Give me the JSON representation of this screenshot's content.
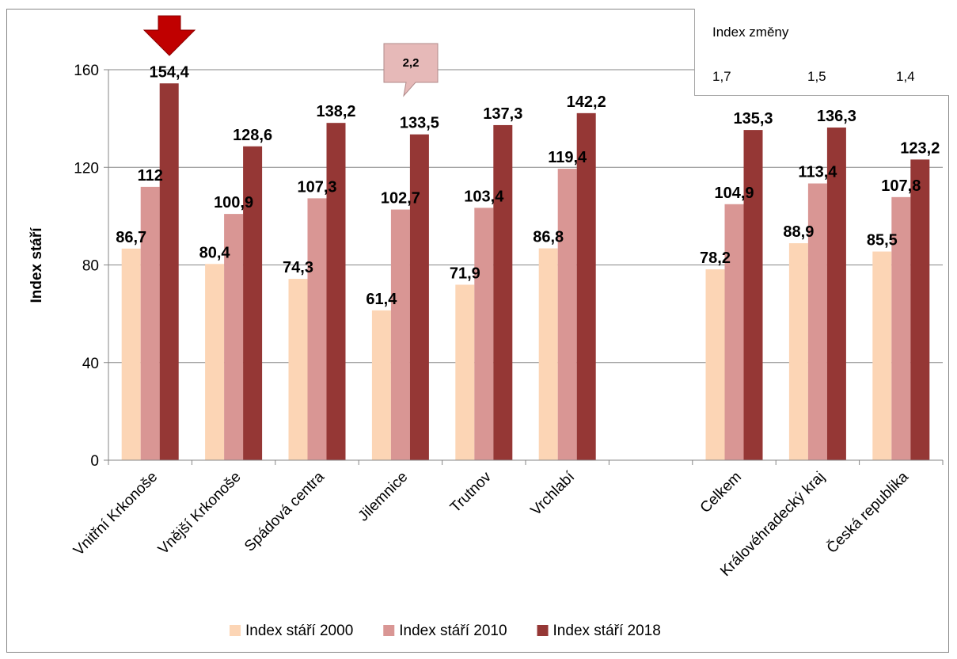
{
  "chart_data": {
    "type": "bar",
    "categories": [
      "Vnitřní Krkonoše",
      "Vnější Krkonoše",
      "Spádová centra",
      "Jilemnice",
      "Trutnov",
      "Vrchlabí",
      "",
      "Celkem",
      "Královéhradecký kraj",
      "Česká republika"
    ],
    "series": [
      {
        "name": "Index stáří 2000",
        "color": "#fcd5b5",
        "values": [
          86.7,
          80.4,
          74.3,
          61.4,
          71.9,
          86.8,
          null,
          78.2,
          88.9,
          85.5
        ],
        "labels": [
          "86,7",
          "80,4",
          "74,3",
          "61,4",
          "71,9",
          "86,8",
          "",
          "78,2",
          "88,9",
          "85,5"
        ]
      },
      {
        "name": "Index stáří 2010",
        "color": "#d99694",
        "values": [
          112,
          100.9,
          107.3,
          102.7,
          103.4,
          119.4,
          null,
          104.9,
          113.4,
          107.8
        ],
        "labels": [
          "112",
          "100,9",
          "107,3",
          "102,7",
          "103,4",
          "119,4",
          "",
          "104,9",
          "113,4",
          "107,8"
        ]
      },
      {
        "name": "Index stáří 2018",
        "color": "#953735",
        "values": [
          154.4,
          128.6,
          138.2,
          133.5,
          137.3,
          142.2,
          null,
          135.3,
          136.3,
          123.2
        ],
        "labels": [
          "154,4",
          "128,6",
          "138,2",
          "133,5",
          "137,3",
          "142,2",
          "",
          "135,3",
          "136,3",
          "123,2"
        ]
      }
    ],
    "ylabel": "Index stáří",
    "ylim": [
      0,
      160
    ],
    "yticks": [
      "0",
      "40",
      "80",
      "120",
      "160"
    ],
    "grid": true,
    "legend": "bottom"
  },
  "index_box": {
    "title": "Index změny",
    "values": [
      "1,7",
      "1,5",
      "1,4"
    ]
  },
  "callout": {
    "text": "2,2"
  },
  "marker": {
    "icon": "down-arrow-icon",
    "color": "#c00000"
  }
}
